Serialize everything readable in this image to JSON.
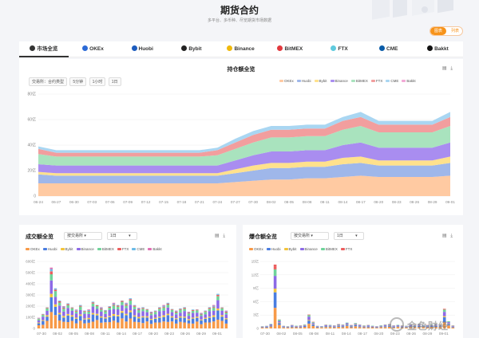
{
  "header": {
    "title": "期货合约",
    "subtitle": "多平台、多币种、尽览期货市场数据",
    "toggle_on": "图表",
    "toggle_off": "列表"
  },
  "tabs": [
    {
      "label": "市场全览",
      "color": "#333333",
      "active": true
    },
    {
      "label": "OKEx",
      "color": "#2b6ad6"
    },
    {
      "label": "Huobi",
      "color": "#1c5cbe"
    },
    {
      "label": "Bybit",
      "color": "#222222"
    },
    {
      "label": "Binance",
      "color": "#f0b90b"
    },
    {
      "label": "BitMEX",
      "color": "#e2383d"
    },
    {
      "label": "FTX",
      "color": "#5fcade"
    },
    {
      "label": "CME",
      "color": "#0a5ca8"
    },
    {
      "label": "Bakkt",
      "color": "#111111"
    }
  ],
  "oi": {
    "title": "持仓额全览",
    "filters": [
      "交易所：合约类型",
      "5分钟",
      "1小时",
      "1日"
    ],
    "legend": [
      "OKEx",
      "Huobi",
      "Bybit",
      "Binance",
      "BitMEX",
      "FTX",
      "CME",
      "Bakkt"
    ],
    "colors": [
      "#ffcaa2",
      "#9fb7ea",
      "#ffe18c",
      "#a98df0",
      "#a9e3be",
      "#f29e9e",
      "#a9d6f2",
      "#f2a9d6"
    ]
  },
  "volume": {
    "title": "成交额全览",
    "select1": "按交易所",
    "select2": "1日"
  },
  "liq": {
    "title": "爆仓额全览",
    "select1": "按交易所",
    "select2": "1日"
  },
  "bar_legend": {
    "labels": [
      "OKEx",
      "Huobi",
      "Bybit",
      "Binance",
      "BitMEX",
      "FTX",
      "CME",
      "Bakkt"
    ],
    "colors": [
      "#f79a48",
      "#4a7de0",
      "#f3c43a",
      "#8d6ae6",
      "#6fd39a",
      "#ec5d5d",
      "#6cbbe6",
      "#e06fb3"
    ]
  },
  "liq_legend": {
    "labels": [
      "OKEx",
      "Huobi",
      "Bybit",
      "Binance",
      "BitMEX",
      "FTX"
    ],
    "colors": [
      "#f79a48",
      "#4a7de0",
      "#f3c43a",
      "#8d6ae6",
      "#6fd39a",
      "#ec5d5d"
    ]
  },
  "watermark": {
    "text": "金色财经"
  },
  "chart_data": [
    {
      "type": "area",
      "title": "持仓额全览",
      "ylim": [
        0,
        80
      ],
      "yticks": [
        "0",
        "20亿",
        "40亿",
        "60亿",
        "80亿"
      ],
      "ytick_values": [
        0,
        20,
        40,
        60,
        80
      ],
      "x": [
        "06-24",
        "06-27",
        "06-30",
        "07-03",
        "07-06",
        "07-09",
        "07-12",
        "07-15",
        "07-18",
        "07-21",
        "07-24",
        "07-27",
        "07-30",
        "08-02",
        "08-05",
        "08-08",
        "08-11",
        "08-14",
        "08-17",
        "08-20",
        "08-23",
        "08-26",
        "08-29",
        "09-01"
      ],
      "series": [
        {
          "name": "OKEx",
          "values": [
            10,
            10,
            10,
            10,
            10,
            10,
            10,
            10,
            10,
            10,
            10,
            11,
            12,
            13,
            13,
            14,
            14,
            15,
            16,
            15,
            15,
            15,
            15,
            16
          ]
        },
        {
          "name": "Huobi",
          "values": [
            7,
            6,
            6,
            6,
            6,
            6,
            6,
            6,
            6,
            6,
            6,
            7,
            8,
            9,
            9,
            9,
            9,
            10,
            10,
            9,
            9,
            9,
            9,
            10
          ]
        },
        {
          "name": "Bybit",
          "values": [
            2,
            2,
            2,
            2,
            2,
            2,
            2,
            2,
            2,
            2,
            2,
            3,
            4,
            4,
            4,
            4,
            4,
            5,
            5,
            4,
            4,
            4,
            4,
            5
          ]
        },
        {
          "name": "Binance",
          "values": [
            6,
            6,
            6,
            6,
            6,
            6,
            6,
            6,
            6,
            6,
            6,
            7,
            8,
            9,
            9,
            9,
            9,
            10,
            11,
            10,
            10,
            10,
            10,
            11
          ]
        },
        {
          "name": "BitMEX",
          "values": [
            8,
            7,
            7,
            7,
            7,
            7,
            7,
            7,
            7,
            7,
            8,
            9,
            10,
            11,
            11,
            11,
            11,
            12,
            13,
            12,
            12,
            12,
            12,
            13
          ]
        },
        {
          "name": "FTX",
          "values": [
            4,
            3,
            3,
            3,
            3,
            3,
            3,
            3,
            3,
            3,
            4,
            5,
            6,
            6,
            6,
            6,
            6,
            7,
            7,
            6,
            6,
            6,
            6,
            7
          ]
        },
        {
          "name": "CME",
          "values": [
            2,
            2,
            2,
            2,
            2,
            2,
            2,
            2,
            2,
            2,
            2,
            3,
            3,
            3,
            3,
            3,
            3,
            3,
            4,
            3,
            3,
            3,
            3,
            4
          ]
        },
        {
          "name": "Bakkt",
          "values": [
            0,
            0,
            0,
            0,
            0,
            0,
            0,
            0,
            0,
            0,
            0,
            0,
            0,
            0,
            0,
            0,
            0,
            0,
            0,
            0,
            0,
            0,
            0,
            0
          ]
        }
      ]
    },
    {
      "type": "bar",
      "title": "成交额全览",
      "ylim": [
        0,
        600
      ],
      "yticks": [
        "0",
        "100亿",
        "200亿",
        "300亿",
        "400亿",
        "500亿",
        "600亿"
      ],
      "ytick_values": [
        0,
        100,
        200,
        300,
        400,
        500,
        600
      ],
      "xticks": [
        "07-30",
        "08-02",
        "08-05",
        "08-08",
        "08-11",
        "08-14",
        "08-17",
        "08-20",
        "08-23",
        "08-26",
        "08-29",
        "09-01"
      ],
      "totals": [
        95,
        130,
        190,
        545,
        360,
        250,
        200,
        225,
        190,
        170,
        210,
        160,
        170,
        240,
        210,
        190,
        165,
        200,
        230,
        210,
        250,
        230,
        270,
        210,
        185,
        190,
        175,
        150,
        160,
        190,
        210,
        230,
        175,
        160,
        180,
        190,
        150,
        170,
        170,
        140,
        160,
        190,
        210,
        310,
        190,
        160
      ],
      "shares": [
        0.3,
        0.22,
        0.06,
        0.22,
        0.12,
        0.04,
        0.04,
        0.0
      ]
    },
    {
      "type": "bar",
      "title": "爆仓额全览",
      "ylim": [
        0,
        15
      ],
      "yticks": [
        "0",
        "3亿",
        "6亿",
        "9亿",
        "12亿",
        "15亿"
      ],
      "ytick_values": [
        0,
        3,
        6,
        9,
        12,
        15
      ],
      "xticks": [
        "07-30",
        "08-02",
        "08-05",
        "08-08",
        "08-11",
        "08-14",
        "08-17",
        "08-20",
        "08-23",
        "08-26",
        "08-29",
        "09-01"
      ],
      "totals": [
        0.5,
        0.6,
        1.0,
        14.3,
        2.0,
        0.6,
        0.5,
        0.8,
        0.6,
        0.7,
        0.9,
        3.1,
        1.5,
        0.6,
        0.5,
        0.9,
        0.8,
        0.7,
        1.0,
        0.9,
        1.3,
        0.8,
        1.2,
        0.9,
        0.7,
        0.8,
        0.6,
        0.5,
        0.7,
        0.9,
        1.0,
        0.7,
        0.8,
        0.7,
        0.6,
        0.9,
        0.8,
        1.0,
        0.7,
        0.8,
        0.9,
        1.0,
        0.8,
        4.4,
        1.6,
        0.7
      ],
      "shares": [
        0.36,
        0.22,
        0.06,
        0.2,
        0.12,
        0.04
      ]
    }
  ]
}
